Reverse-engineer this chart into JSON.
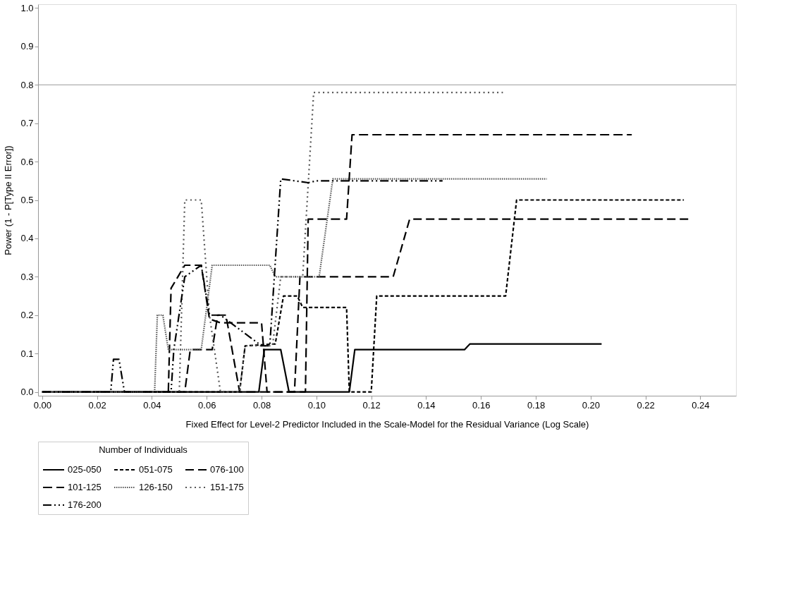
{
  "chart_data": {
    "type": "line",
    "xlabel": "Fixed Effect for Level-2 Predictor Included in the Scale-Model for the Residual Variance (Log Scale)",
    "ylabel": "Power (1 - P[Type II Error])",
    "legend_title": "Number of Individuals",
    "legend": "bottom",
    "grid": false,
    "marker": "none",
    "xlim": [
      -0.0015,
      0.253
    ],
    "ylim": [
      -0.01,
      1.01
    ],
    "xticks": [
      {
        "value": 0,
        "label": "0.00"
      },
      {
        "value": 0.02,
        "label": "0.02"
      },
      {
        "value": 0.04,
        "label": "0.04"
      },
      {
        "value": 0.06,
        "label": "0.06"
      },
      {
        "value": 0.08,
        "label": "0.08"
      },
      {
        "value": 0.1,
        "label": "0.10"
      },
      {
        "value": 0.12,
        "label": "0.12"
      },
      {
        "value": 0.14,
        "label": "0.14"
      },
      {
        "value": 0.16,
        "label": "0.16"
      },
      {
        "value": 0.18,
        "label": "0.18"
      },
      {
        "value": 0.2,
        "label": "0.20"
      },
      {
        "value": 0.22,
        "label": "0.22"
      },
      {
        "value": 0.24,
        "label": "0.24"
      }
    ],
    "yticks": [
      {
        "value": 0,
        "label": "0.0"
      },
      0.1,
      0.2,
      0.3,
      0.4,
      0.5,
      0.6,
      0.7,
      0.8,
      0.9,
      {
        "value": 1,
        "label": "1.0"
      }
    ],
    "ref_lines": [
      {
        "axis": "y",
        "value": 0.8,
        "color": "#999999",
        "line_style": "solid"
      }
    ],
    "series": [
      {
        "name": "025-050",
        "color": "#000000",
        "line_style": "solid",
        "x": [
          0,
          0.079,
          0.081,
          0.087,
          0.09,
          0.112,
          0.114,
          0.154,
          0.156,
          0.204
        ],
        "values": [
          0,
          0,
          0.11,
          0.11,
          0,
          0,
          0.11,
          0.11,
          0.125,
          0.125
        ]
      },
      {
        "name": "051-075",
        "color": "#000000",
        "line_style": "dashed",
        "x": [
          0,
          0.072,
          0.074,
          0.085,
          0.088,
          0.093,
          0.095,
          0.111,
          0.112,
          0.12,
          0.122,
          0.169,
          0.173,
          0.234
        ],
        "values": [
          0,
          0,
          0.12,
          0.125,
          0.25,
          0.25,
          0.22,
          0.22,
          0,
          0,
          0.25,
          0.25,
          0.5,
          0.5
        ]
      },
      {
        "name": "076-100",
        "color": "#000000",
        "line_style": "longdash",
        "x": [
          0,
          0.046,
          0.047,
          0.052,
          0.058,
          0.061,
          0.065,
          0.08,
          0.082,
          0.092,
          0.094,
          0.128,
          0.134,
          0.236
        ],
        "values": [
          0,
          0,
          0.27,
          0.33,
          0.33,
          0.19,
          0.18,
          0.18,
          0,
          0,
          0.3,
          0.3,
          0.45,
          0.45
        ]
      },
      {
        "name": "101-125",
        "color": "#000000",
        "line_style": "gapdash",
        "x": [
          0,
          0.052,
          0.054,
          0.062,
          0.064,
          0.067,
          0.072,
          0.096,
          0.097,
          0.111,
          0.113,
          0.215
        ],
        "values": [
          0,
          0,
          0.11,
          0.11,
          0.2,
          0.2,
          0,
          0,
          0.45,
          0.45,
          0.67,
          0.67
        ]
      },
      {
        "name": "126-150",
        "color": "#555555",
        "line_style": "dotted",
        "x": [
          0,
          0.041,
          0.042,
          0.044,
          0.046,
          0.058,
          0.062,
          0.083,
          0.085,
          0.101,
          0.106,
          0.184
        ],
        "values": [
          0,
          0,
          0.2,
          0.2,
          0.11,
          0.11,
          0.33,
          0.33,
          0.3,
          0.3,
          0.555,
          0.555
        ]
      },
      {
        "name": "151-175",
        "color": "#555555",
        "line_style": "sparsedot",
        "x": [
          0,
          0.05,
          0.052,
          0.058,
          0.061,
          0.065,
          0.072,
          0.074,
          0.084,
          0.087,
          0.095,
          0.099,
          0.168
        ],
        "values": [
          0,
          0,
          0.5,
          0.5,
          0.2,
          0,
          0,
          0.12,
          0.12,
          0.3,
          0.3,
          0.78,
          0.78
        ]
      },
      {
        "name": "176-200",
        "color": "#000000",
        "line_style": "dashdot",
        "x": [
          0,
          0.025,
          0.026,
          0.028,
          0.03,
          0.047,
          0.048,
          0.052,
          0.058,
          0.061,
          0.065,
          0.08,
          0.083,
          0.087,
          0.097,
          0.1,
          0.146
        ],
        "values": [
          0,
          0,
          0.085,
          0.085,
          0,
          0,
          0.11,
          0.3,
          0.33,
          0.2,
          0.2,
          0.12,
          0.12,
          0.555,
          0.545,
          0.55,
          0.55
        ]
      }
    ]
  }
}
